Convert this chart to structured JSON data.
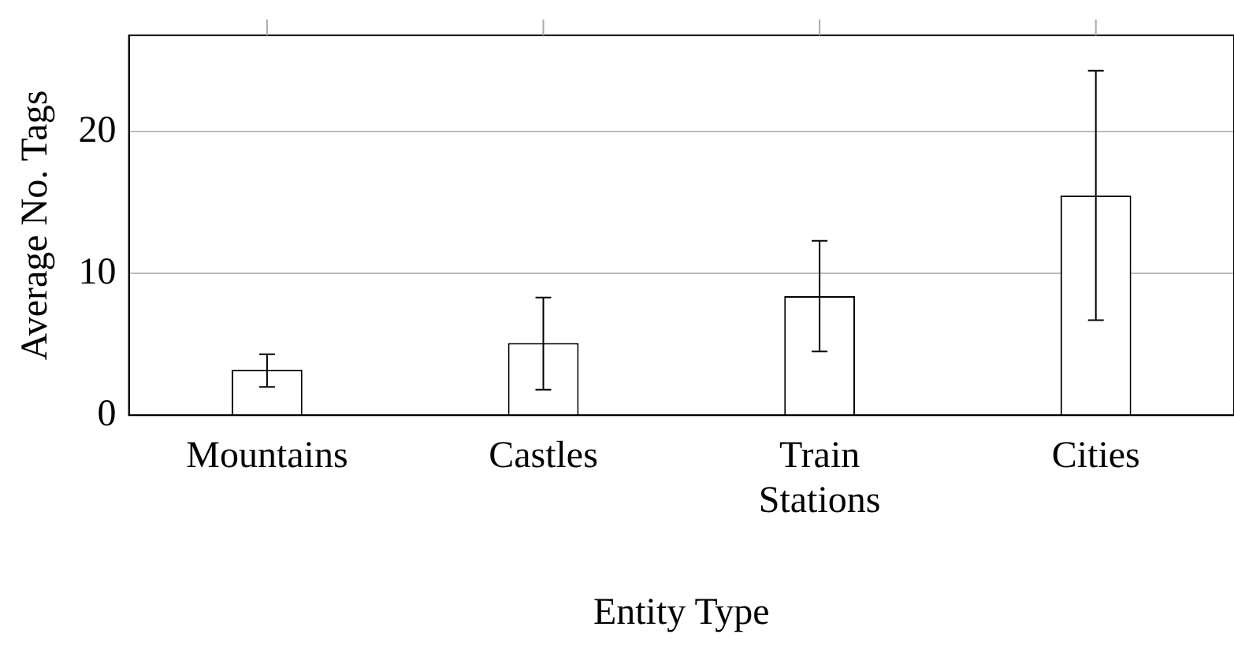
{
  "chart_data": {
    "type": "bar",
    "xlabel": "Entity Type",
    "ylabel": "Average No. Tags",
    "categories": [
      "Mountains",
      "Castles",
      "Train Stations",
      "Cities"
    ],
    "values": [
      3.2,
      5.1,
      8.4,
      15.5
    ],
    "errors": [
      [
        2.0,
        4.3
      ],
      [
        1.8,
        8.3
      ],
      [
        4.5,
        12.3
      ],
      [
        6.7,
        24.3
      ]
    ],
    "color": "#ffffff",
    "ylim": [
      0,
      26.8
    ],
    "yticks": [
      0,
      10,
      20
    ],
    "grid": "y",
    "legend": false
  }
}
